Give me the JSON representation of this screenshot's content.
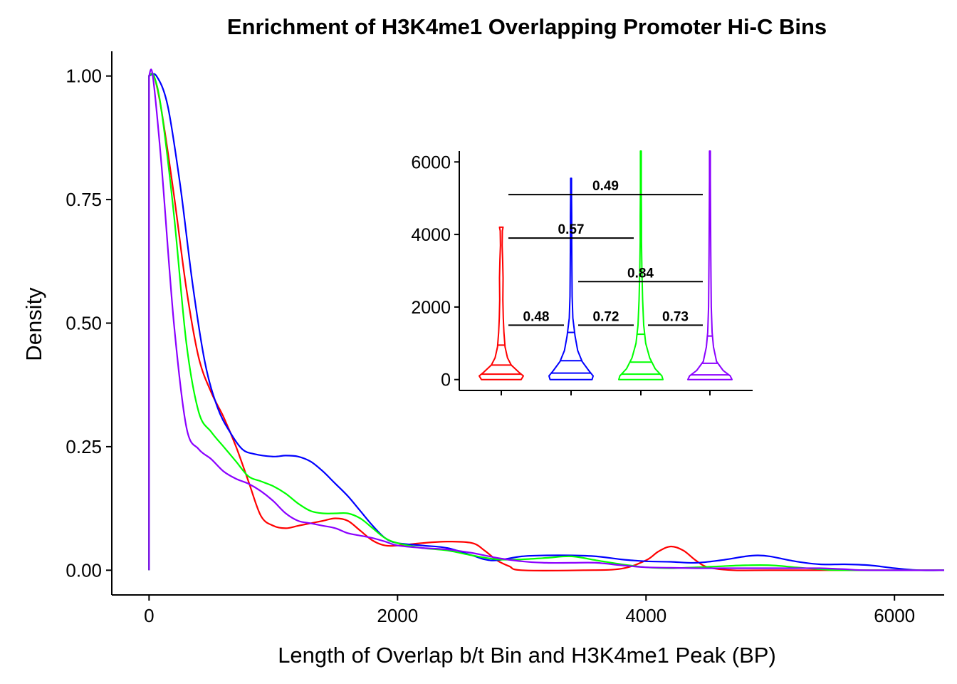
{
  "chart_data": [
    {
      "type": "line",
      "title": "Enrichment of H3K4me1 Overlapping Promoter Hi-C Bins",
      "xlabel": "Length of Overlap b/t Bin and H3K4me1 Peak (BP)",
      "ylabel": "Density",
      "xlim": [
        -300,
        6400
      ],
      "ylim": [
        -0.05,
        1.05
      ],
      "x_ticks": [
        0,
        2000,
        4000,
        6000
      ],
      "x_tick_labels": [
        "0",
        "2000",
        "4000",
        "6000"
      ],
      "y_ticks": [
        0,
        0.25,
        0.5,
        0.75,
        1
      ],
      "y_tick_labels": [
        "0.00",
        "0.25",
        "0.50",
        "0.75",
        "1.00"
      ],
      "grid": false,
      "legend": "none",
      "series": [
        {
          "color": "#ff0000",
          "points": [
            [
              0,
              0
            ],
            [
              0,
              1.0
            ],
            [
              40,
              1.0
            ],
            [
              100,
              0.93
            ],
            [
              200,
              0.76
            ],
            [
              300,
              0.57
            ],
            [
              400,
              0.43
            ],
            [
              500,
              0.36
            ],
            [
              600,
              0.31
            ],
            [
              700,
              0.25
            ],
            [
              800,
              0.18
            ],
            [
              900,
              0.11
            ],
            [
              1000,
              0.09
            ],
            [
              1100,
              0.085
            ],
            [
              1200,
              0.09
            ],
            [
              1300,
              0.095
            ],
            [
              1400,
              0.1
            ],
            [
              1500,
              0.105
            ],
            [
              1600,
              0.1
            ],
            [
              1700,
              0.08
            ],
            [
              1800,
              0.06
            ],
            [
              1900,
              0.05
            ],
            [
              2000,
              0.05
            ],
            [
              2200,
              0.055
            ],
            [
              2400,
              0.058
            ],
            [
              2600,
              0.055
            ],
            [
              2700,
              0.04
            ],
            [
              2800,
              0.02
            ],
            [
              2900,
              0.008
            ],
            [
              3000,
              0.0
            ],
            [
              3500,
              0.0
            ],
            [
              3800,
              0.003
            ],
            [
              4000,
              0.02
            ],
            [
              4100,
              0.038
            ],
            [
              4200,
              0.048
            ],
            [
              4300,
              0.04
            ],
            [
              4400,
              0.02
            ],
            [
              4500,
              0.006
            ],
            [
              4700,
              0.0
            ],
            [
              5000,
              0.0
            ],
            [
              6400,
              0.0
            ]
          ]
        },
        {
          "color": "#0000ff",
          "points": [
            [
              0,
              0
            ],
            [
              0,
              1.0
            ],
            [
              60,
              1.0
            ],
            [
              150,
              0.94
            ],
            [
              250,
              0.78
            ],
            [
              350,
              0.58
            ],
            [
              450,
              0.42
            ],
            [
              550,
              0.33
            ],
            [
              650,
              0.28
            ],
            [
              750,
              0.245
            ],
            [
              850,
              0.235
            ],
            [
              1000,
              0.23
            ],
            [
              1100,
              0.232
            ],
            [
              1200,
              0.23
            ],
            [
              1300,
              0.22
            ],
            [
              1400,
              0.2
            ],
            [
              1500,
              0.175
            ],
            [
              1600,
              0.15
            ],
            [
              1700,
              0.12
            ],
            [
              1800,
              0.09
            ],
            [
              1900,
              0.065
            ],
            [
              2000,
              0.055
            ],
            [
              2200,
              0.05
            ],
            [
              2400,
              0.045
            ],
            [
              2600,
              0.03
            ],
            [
              2700,
              0.022
            ],
            [
              2800,
              0.02
            ],
            [
              3000,
              0.028
            ],
            [
              3200,
              0.03
            ],
            [
              3400,
              0.03
            ],
            [
              3600,
              0.028
            ],
            [
              3800,
              0.022
            ],
            [
              4000,
              0.018
            ],
            [
              4200,
              0.017
            ],
            [
              4400,
              0.015
            ],
            [
              4600,
              0.02
            ],
            [
              4800,
              0.028
            ],
            [
              4900,
              0.03
            ],
            [
              5000,
              0.028
            ],
            [
              5200,
              0.018
            ],
            [
              5400,
              0.012
            ],
            [
              5600,
              0.012
            ],
            [
              5800,
              0.01
            ],
            [
              6000,
              0.004
            ],
            [
              6200,
              0.0
            ],
            [
              6400,
              0.0
            ]
          ]
        },
        {
          "color": "#00ff00",
          "points": [
            [
              0,
              0
            ],
            [
              0,
              1.0
            ],
            [
              40,
              1.0
            ],
            [
              100,
              0.93
            ],
            [
              200,
              0.72
            ],
            [
              300,
              0.46
            ],
            [
              400,
              0.32
            ],
            [
              500,
              0.28
            ],
            [
              600,
              0.25
            ],
            [
              700,
              0.22
            ],
            [
              800,
              0.19
            ],
            [
              900,
              0.18
            ],
            [
              1000,
              0.17
            ],
            [
              1100,
              0.155
            ],
            [
              1200,
              0.135
            ],
            [
              1300,
              0.12
            ],
            [
              1400,
              0.115
            ],
            [
              1500,
              0.115
            ],
            [
              1600,
              0.115
            ],
            [
              1700,
              0.105
            ],
            [
              1800,
              0.085
            ],
            [
              1900,
              0.065
            ],
            [
              2000,
              0.055
            ],
            [
              2200,
              0.045
            ],
            [
              2400,
              0.04
            ],
            [
              2600,
              0.03
            ],
            [
              2800,
              0.022
            ],
            [
              3000,
              0.022
            ],
            [
              3200,
              0.025
            ],
            [
              3400,
              0.028
            ],
            [
              3600,
              0.02
            ],
            [
              3800,
              0.012
            ],
            [
              4000,
              0.006
            ],
            [
              4200,
              0.004
            ],
            [
              4400,
              0.006
            ],
            [
              4600,
              0.008
            ],
            [
              4800,
              0.01
            ],
            [
              5000,
              0.01
            ],
            [
              5200,
              0.006
            ],
            [
              5400,
              0.002
            ],
            [
              5600,
              0.0
            ],
            [
              6400,
              0.0
            ]
          ]
        },
        {
          "color": "#8b00ff",
          "points": [
            [
              0,
              0
            ],
            [
              0,
              1.0
            ],
            [
              30,
              1.0
            ],
            [
              100,
              0.82
            ],
            [
              200,
              0.5
            ],
            [
              300,
              0.29
            ],
            [
              400,
              0.245
            ],
            [
              500,
              0.225
            ],
            [
              600,
              0.2
            ],
            [
              700,
              0.185
            ],
            [
              800,
              0.175
            ],
            [
              900,
              0.16
            ],
            [
              1000,
              0.14
            ],
            [
              1100,
              0.115
            ],
            [
              1200,
              0.1
            ],
            [
              1300,
              0.095
            ],
            [
              1400,
              0.09
            ],
            [
              1500,
              0.085
            ],
            [
              1600,
              0.075
            ],
            [
              1700,
              0.07
            ],
            [
              1800,
              0.065
            ],
            [
              1900,
              0.058
            ],
            [
              2000,
              0.05
            ],
            [
              2200,
              0.045
            ],
            [
              2400,
              0.042
            ],
            [
              2600,
              0.035
            ],
            [
              2800,
              0.025
            ],
            [
              3000,
              0.018
            ],
            [
              3200,
              0.015
            ],
            [
              3400,
              0.015
            ],
            [
              3600,
              0.015
            ],
            [
              3800,
              0.01
            ],
            [
              4000,
              0.006
            ],
            [
              4200,
              0.005
            ],
            [
              4400,
              0.004
            ],
            [
              4600,
              0.004
            ],
            [
              4800,
              0.004
            ],
            [
              5000,
              0.004
            ],
            [
              5200,
              0.004
            ],
            [
              5400,
              0.004
            ],
            [
              5600,
              0.002
            ],
            [
              5800,
              0.0
            ],
            [
              6400,
              0.0
            ]
          ]
        }
      ]
    },
    {
      "type": "violin",
      "title": "",
      "xlabel": "",
      "ylabel": "",
      "categories": [
        "",
        "",
        "",
        ""
      ],
      "ylim": [
        -300,
        6300
      ],
      "y_ticks": [
        0,
        2000,
        4000,
        6000
      ],
      "y_tick_labels": [
        "0",
        "2000",
        "4000",
        "6000"
      ],
      "grid": false,
      "series": [
        {
          "color": "#ff0000",
          "max": 4200,
          "quantiles": [
            150,
            400,
            950
          ],
          "profile": [
            [
              0,
              0.9
            ],
            [
              100,
              1.0
            ],
            [
              200,
              0.8
            ],
            [
              400,
              0.45
            ],
            [
              600,
              0.28
            ],
            [
              900,
              0.17
            ],
            [
              1300,
              0.12
            ],
            [
              1700,
              0.09
            ],
            [
              2200,
              0.07
            ],
            [
              2800,
              0.08
            ],
            [
              3300,
              0.06
            ],
            [
              3700,
              0.04
            ],
            [
              4100,
              0.05
            ],
            [
              4200,
              0.08
            ]
          ]
        },
        {
          "color": "#0000ff",
          "max": 5550,
          "quantiles": [
            180,
            520,
            1300
          ],
          "profile": [
            [
              0,
              0.95
            ],
            [
              100,
              1.0
            ],
            [
              250,
              0.8
            ],
            [
              500,
              0.5
            ],
            [
              800,
              0.3
            ],
            [
              1200,
              0.18
            ],
            [
              1700,
              0.08
            ],
            [
              2300,
              0.05
            ],
            [
              3000,
              0.04
            ],
            [
              3800,
              0.03
            ],
            [
              4500,
              0.03
            ],
            [
              5100,
              0.02
            ],
            [
              5550,
              0.0
            ]
          ]
        },
        {
          "color": "#00ff00",
          "max": 6300,
          "quantiles": [
            150,
            480,
            1250
          ],
          "profile": [
            [
              0,
              1.0
            ],
            [
              100,
              0.95
            ],
            [
              300,
              0.65
            ],
            [
              600,
              0.4
            ],
            [
              1000,
              0.22
            ],
            [
              1500,
              0.13
            ],
            [
              2200,
              0.08
            ],
            [
              3000,
              0.05
            ],
            [
              3800,
              0.03
            ],
            [
              4500,
              0.03
            ],
            [
              5200,
              0.02
            ],
            [
              6300,
              0.0
            ]
          ]
        },
        {
          "color": "#8b00ff",
          "max": 6300,
          "quantiles": [
            130,
            450,
            1200
          ],
          "profile": [
            [
              0,
              1.0
            ],
            [
              100,
              0.92
            ],
            [
              250,
              0.6
            ],
            [
              500,
              0.3
            ],
            [
              900,
              0.16
            ],
            [
              1300,
              0.1
            ],
            [
              2000,
              0.06
            ],
            [
              2800,
              0.05
            ],
            [
              3500,
              0.04
            ],
            [
              4500,
              0.03
            ],
            [
              5500,
              0.02
            ],
            [
              6300,
              0.0
            ]
          ]
        }
      ],
      "comparisons": [
        {
          "groups": [
            1,
            2
          ],
          "y": 1500,
          "label": "0.48"
        },
        {
          "groups": [
            2,
            3
          ],
          "y": 1500,
          "label": "0.72"
        },
        {
          "groups": [
            3,
            4
          ],
          "y": 1500,
          "label": "0.73"
        },
        {
          "groups": [
            2,
            4
          ],
          "y": 2700,
          "label": "0.84"
        },
        {
          "groups": [
            1,
            3
          ],
          "y": 3900,
          "label": "0.57"
        },
        {
          "groups": [
            1,
            4
          ],
          "y": 5100,
          "label": "0.49"
        }
      ]
    }
  ]
}
